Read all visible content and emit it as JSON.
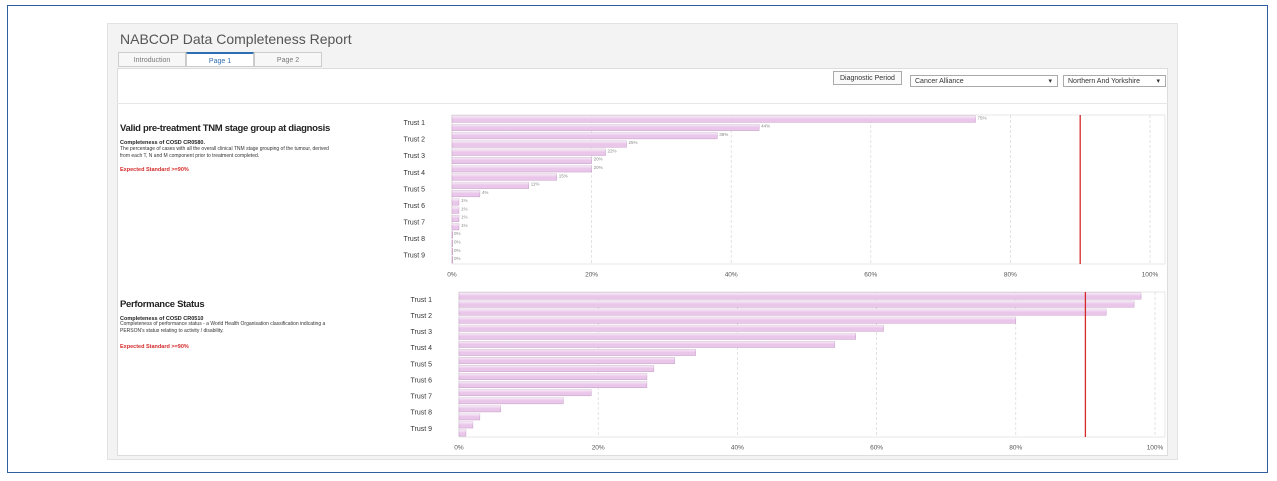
{
  "header": {
    "title": "NABCOP Data Completeness Report",
    "tabs": [
      "Introduction",
      "Page 1",
      "Page 2"
    ],
    "active_tab": 1,
    "button": "Diagnostic Period",
    "filters": [
      "Cancer Alliance",
      "Northern And Yorkshire"
    ]
  },
  "chart_data": [
    {
      "type": "bar",
      "orientation": "horizontal",
      "title": "Valid pre-treatment TNM stage group at diagnosis",
      "subtitle": "Completeness of COSD CR0580.",
      "description": "The percentage of cases with all the overall clinical TNM stage grouping of the tumour, derived from each T, N and M component prior to treatment completed.",
      "annotation": "Expected Standard >=90%",
      "categories": [
        "Trust 1",
        null,
        "Trust 2",
        null,
        "Trust 3",
        null,
        "Trust 4",
        null,
        "Trust 5",
        null,
        "Trust 6",
        null,
        "Trust 7",
        null,
        "Trust 8",
        null,
        "Trust 9",
        null
      ],
      "values": [
        75,
        44,
        38,
        25,
        22,
        20,
        20,
        15,
        11,
        4,
        1,
        1,
        1,
        1,
        0,
        0,
        0,
        0
      ],
      "value_labels": [
        "75%",
        "44%",
        "38%",
        "25%",
        "22%",
        "20%",
        "20%",
        "15%",
        "11%",
        "4%",
        "1%",
        "1%",
        "1%",
        "1%",
        "0%",
        "0%",
        "0%",
        "0%"
      ],
      "color": "#e9c6ea",
      "target": 90,
      "target_color": "#d42a2a",
      "xlim": [
        0,
        100
      ],
      "xticks": [
        {
          "value": 0,
          "label": "0%"
        },
        {
          "value": 20,
          "label": "20%"
        },
        {
          "value": 40,
          "label": "40%"
        },
        {
          "value": 60,
          "label": "60%"
        },
        {
          "value": 80,
          "label": "80%"
        },
        {
          "value": 100,
          "label": "100%"
        }
      ],
      "grid": true
    },
    {
      "type": "bar",
      "orientation": "horizontal",
      "title": "Performance Status",
      "subtitle": "Completeness of COSD CR0510",
      "description": "Completeness of performance status - a World Health Organisation classification indicating a PERSON's status relating to activity / disability.",
      "annotation": "Expected Standard >=90%",
      "categories": [
        "Trust 1",
        null,
        "Trust 2",
        null,
        "Trust 3",
        null,
        "Trust 4",
        null,
        "Trust 5",
        null,
        "Trust 6",
        null,
        "Trust 7",
        null,
        "Trust 8",
        null,
        "Trust 9",
        null
      ],
      "values": [
        98,
        97,
        93,
        80,
        61,
        57,
        54,
        34,
        31,
        28,
        27,
        27,
        19,
        15,
        6,
        3,
        2,
        1
      ],
      "color": "#e9c6ea",
      "target": 90,
      "target_color": "#d42a2a",
      "xlim": [
        0,
        100
      ],
      "xticks": [
        {
          "value": 0,
          "label": "0%"
        },
        {
          "value": 20,
          "label": "20%"
        },
        {
          "value": 40,
          "label": "40%"
        },
        {
          "value": 60,
          "label": "60%"
        },
        {
          "value": 80,
          "label": "80%"
        },
        {
          "value": 100,
          "label": "100%"
        }
      ],
      "grid": true
    }
  ]
}
